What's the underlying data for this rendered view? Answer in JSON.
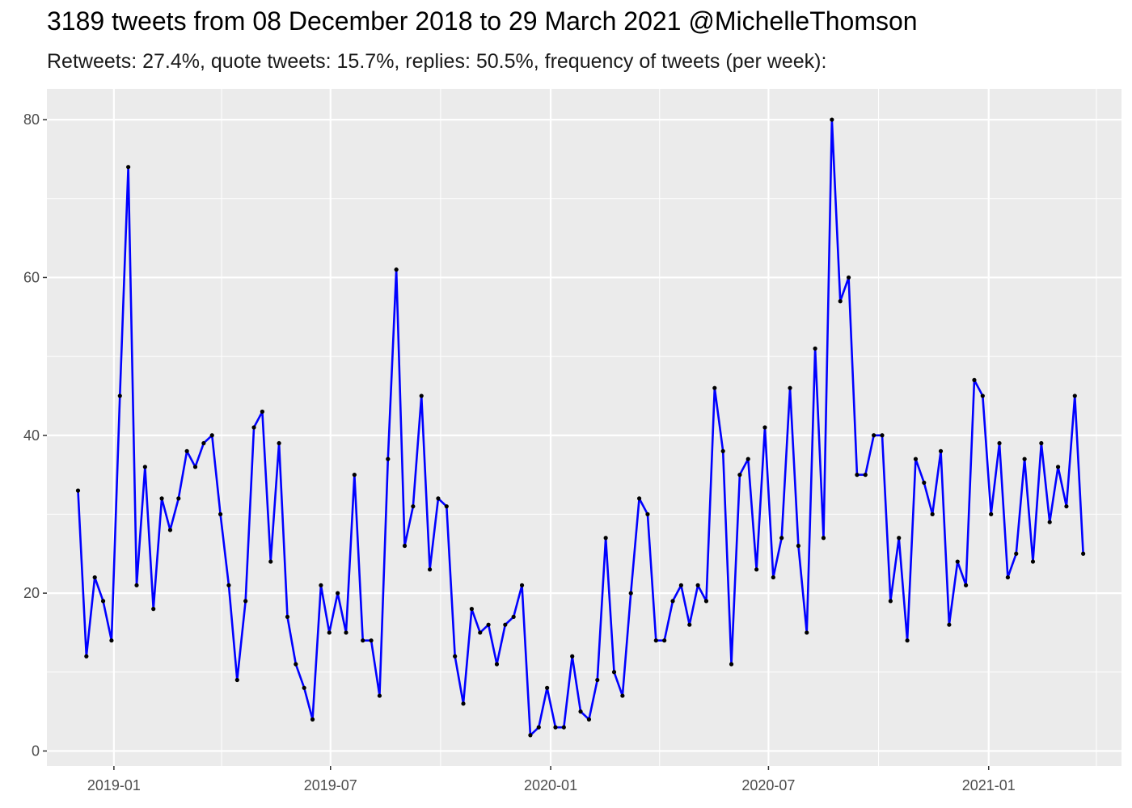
{
  "chart_data": {
    "type": "line",
    "title": "3189 tweets from 08 December 2018 to 29 March 2021 @MichelleThomson",
    "subtitle": "Retweets: 27.4%, quote tweets: 15.7%, replies: 50.5%, frequency of tweets (per week):",
    "xlabel": "",
    "ylabel": "",
    "xlim": [
      "2018-11-06",
      "2021-04-22"
    ],
    "ylim": [
      -1.9,
      83.9
    ],
    "x_ticks": [
      {
        "date": "2019-01-01",
        "label": "2019-01"
      },
      {
        "date": "2019-07-01",
        "label": "2019-07"
      },
      {
        "date": "2020-01-01",
        "label": "2020-01"
      },
      {
        "date": "2020-07-01",
        "label": "2020-07"
      },
      {
        "date": "2021-01-01",
        "label": "2021-01"
      }
    ],
    "x_minor_ticks": [
      "2019-04-01",
      "2019-10-01",
      "2020-04-01",
      "2020-10-01",
      "2021-04-01"
    ],
    "y_ticks": [
      0,
      20,
      40,
      60,
      80
    ],
    "y_minor_ticks": [
      10,
      30,
      50,
      70
    ],
    "grid": true,
    "line_color": "#0000ff",
    "point_color": "#000000",
    "panel_color": "#ebebeb",
    "grid_color": "#ffffff",
    "series": [
      {
        "points": [
          [
            "2018-12-02",
            33
          ],
          [
            "2018-12-09",
            12
          ],
          [
            "2018-12-16",
            22
          ],
          [
            "2018-12-23",
            19
          ],
          [
            "2018-12-30",
            14
          ],
          [
            "2019-01-06",
            45
          ],
          [
            "2019-01-13",
            74
          ],
          [
            "2019-01-20",
            21
          ],
          [
            "2019-01-27",
            36
          ],
          [
            "2019-02-03",
            18
          ],
          [
            "2019-02-10",
            32
          ],
          [
            "2019-02-17",
            28
          ],
          [
            "2019-02-24",
            32
          ],
          [
            "2019-03-03",
            38
          ],
          [
            "2019-03-10",
            36
          ],
          [
            "2019-03-17",
            39
          ],
          [
            "2019-03-24",
            40
          ],
          [
            "2019-03-31",
            30
          ],
          [
            "2019-04-07",
            21
          ],
          [
            "2019-04-14",
            9
          ],
          [
            "2019-04-21",
            19
          ],
          [
            "2019-04-28",
            41
          ],
          [
            "2019-05-05",
            43
          ],
          [
            "2019-05-12",
            24
          ],
          [
            "2019-05-19",
            39
          ],
          [
            "2019-05-26",
            17
          ],
          [
            "2019-06-02",
            11
          ],
          [
            "2019-06-09",
            8
          ],
          [
            "2019-06-16",
            4
          ],
          [
            "2019-06-23",
            21
          ],
          [
            "2019-06-30",
            15
          ],
          [
            "2019-07-07",
            20
          ],
          [
            "2019-07-14",
            15
          ],
          [
            "2019-07-21",
            35
          ],
          [
            "2019-07-28",
            14
          ],
          [
            "2019-08-04",
            14
          ],
          [
            "2019-08-11",
            7
          ],
          [
            "2019-08-18",
            37
          ],
          [
            "2019-08-25",
            61
          ],
          [
            "2019-09-01",
            26
          ],
          [
            "2019-09-08",
            31
          ],
          [
            "2019-09-15",
            45
          ],
          [
            "2019-09-22",
            23
          ],
          [
            "2019-09-29",
            32
          ],
          [
            "2019-10-06",
            31
          ],
          [
            "2019-10-13",
            12
          ],
          [
            "2019-10-20",
            6
          ],
          [
            "2019-10-27",
            18
          ],
          [
            "2019-11-03",
            15
          ],
          [
            "2019-11-10",
            16
          ],
          [
            "2019-11-17",
            11
          ],
          [
            "2019-11-24",
            16
          ],
          [
            "2019-12-01",
            17
          ],
          [
            "2019-12-08",
            21
          ],
          [
            "2019-12-15",
            2
          ],
          [
            "2019-12-22",
            3
          ],
          [
            "2019-12-29",
            8
          ],
          [
            "2020-01-05",
            3
          ],
          [
            "2020-01-12",
            3
          ],
          [
            "2020-01-19",
            12
          ],
          [
            "2020-01-26",
            5
          ],
          [
            "2020-02-02",
            4
          ],
          [
            "2020-02-09",
            9
          ],
          [
            "2020-02-16",
            27
          ],
          [
            "2020-02-23",
            10
          ],
          [
            "2020-03-01",
            7
          ],
          [
            "2020-03-08",
            20
          ],
          [
            "2020-03-15",
            32
          ],
          [
            "2020-03-22",
            30
          ],
          [
            "2020-03-29",
            14
          ],
          [
            "2020-04-05",
            14
          ],
          [
            "2020-04-12",
            19
          ],
          [
            "2020-04-19",
            21
          ],
          [
            "2020-04-26",
            16
          ],
          [
            "2020-05-03",
            21
          ],
          [
            "2020-05-10",
            19
          ],
          [
            "2020-05-17",
            46
          ],
          [
            "2020-05-24",
            38
          ],
          [
            "2020-05-31",
            11
          ],
          [
            "2020-06-07",
            35
          ],
          [
            "2020-06-14",
            37
          ],
          [
            "2020-06-21",
            23
          ],
          [
            "2020-06-28",
            41
          ],
          [
            "2020-07-05",
            22
          ],
          [
            "2020-07-12",
            27
          ],
          [
            "2020-07-19",
            46
          ],
          [
            "2020-07-26",
            26
          ],
          [
            "2020-08-02",
            15
          ],
          [
            "2020-08-09",
            51
          ],
          [
            "2020-08-16",
            27
          ],
          [
            "2020-08-23",
            80
          ],
          [
            "2020-08-30",
            57
          ],
          [
            "2020-09-06",
            60
          ],
          [
            "2020-09-13",
            35
          ],
          [
            "2020-09-20",
            35
          ],
          [
            "2020-09-27",
            40
          ],
          [
            "2020-10-04",
            40
          ],
          [
            "2020-10-11",
            19
          ],
          [
            "2020-10-18",
            27
          ],
          [
            "2020-10-25",
            14
          ],
          [
            "2020-11-01",
            37
          ],
          [
            "2020-11-08",
            34
          ],
          [
            "2020-11-15",
            30
          ],
          [
            "2020-11-22",
            38
          ],
          [
            "2020-11-29",
            16
          ],
          [
            "2020-12-06",
            24
          ],
          [
            "2020-12-13",
            21
          ],
          [
            "2020-12-20",
            47
          ],
          [
            "2020-12-27",
            45
          ],
          [
            "2021-01-03",
            30
          ],
          [
            "2021-01-10",
            39
          ],
          [
            "2021-01-17",
            22
          ],
          [
            "2021-01-24",
            25
          ],
          [
            "2021-01-31",
            37
          ],
          [
            "2021-02-07",
            24
          ],
          [
            "2021-02-14",
            39
          ],
          [
            "2021-02-21",
            29
          ],
          [
            "2021-02-28",
            36
          ],
          [
            "2021-03-07",
            31
          ],
          [
            "2021-03-14",
            45
          ],
          [
            "2021-03-21",
            25
          ]
        ]
      }
    ]
  }
}
